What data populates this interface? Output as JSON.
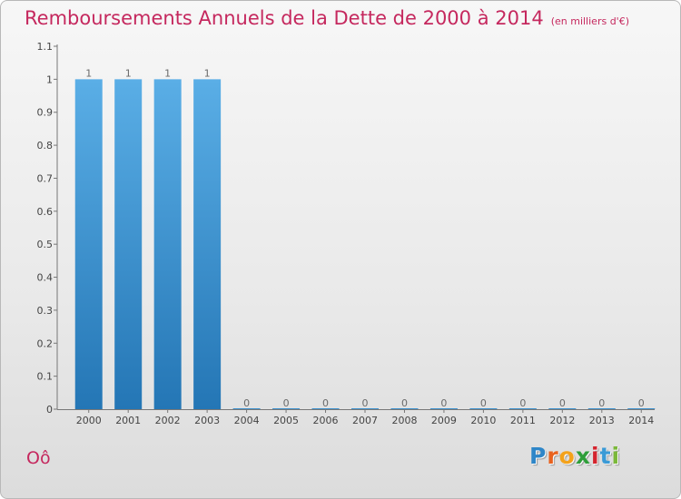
{
  "header": {
    "title": "Remboursements Annuels de la Dette de 2000 à 2014",
    "subtitle": "(en milliers d'€)"
  },
  "footer": {
    "commune": "Oô",
    "logo_letters": [
      "P",
      "r",
      "o",
      "x",
      "i",
      "t",
      "i"
    ]
  },
  "colors": {
    "bar_top": "#5aaee6",
    "bar_bottom": "#2476b5",
    "title": "#c5285e"
  },
  "chart_data": {
    "type": "bar",
    "title": "Remboursements Annuels de la Dette de 2000 à 2014",
    "subtitle": "(en milliers d'€)",
    "categories": [
      "2000",
      "2001",
      "2002",
      "2003",
      "2004",
      "2005",
      "2006",
      "2007",
      "2008",
      "2009",
      "2010",
      "2011",
      "2012",
      "2013",
      "2014"
    ],
    "values": [
      1,
      1,
      1,
      1,
      0,
      0,
      0,
      0,
      0,
      0,
      0,
      0,
      0,
      0,
      0
    ],
    "data_labels": [
      "1",
      "1",
      "1",
      "1",
      "0",
      "0",
      "0",
      "0",
      "0",
      "0",
      "0",
      "0",
      "0",
      "0",
      "0"
    ],
    "yticks": [
      "0",
      "0.1",
      "0.2",
      "0.3",
      "0.4",
      "0.5",
      "0.6",
      "0.7",
      "0.8",
      "0.9",
      "1",
      "1.1"
    ],
    "ylim": [
      0,
      1.1
    ],
    "xlabel": "",
    "ylabel": "",
    "grid": false,
    "legend": "none"
  }
}
